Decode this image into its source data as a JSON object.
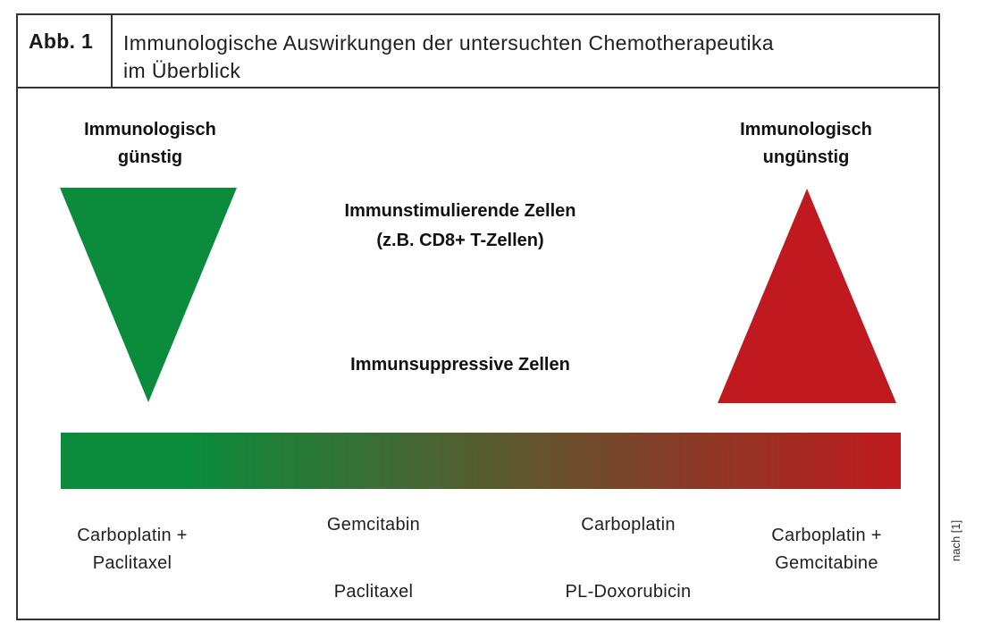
{
  "figure": {
    "label": "Abb. 1",
    "title_line1": "Immunologische Auswirkungen der untersuchten Chemotherapeutika",
    "title_line2": "im Überblick"
  },
  "left_side": {
    "heading_line1": "Immunologisch",
    "heading_line2": "günstig",
    "triangle_direction": "down",
    "triangle_color": "#0a8c3c"
  },
  "right_side": {
    "heading_line1": "Immunologisch",
    "heading_line2": "ungünstig",
    "triangle_direction": "up",
    "triangle_color": "#c0191f"
  },
  "center_labels": {
    "stimulating_line1": "Immunstimulierende Zellen",
    "stimulating_line2": "(z.B. CD8+ T-Zellen)",
    "suppressive": "Immunsuppressive Zellen"
  },
  "gradient": {
    "start_color": "#0a8c3c",
    "end_color": "#c0191f"
  },
  "drugs": {
    "group1_line1": "Carboplatin +",
    "group1_line2": "Paclitaxel",
    "group2_top": "Gemcitabin",
    "group2_bottom": "Paclitaxel",
    "group3_top": "Carboplatin",
    "group3_bottom": "PL-Doxorubicin",
    "group4_line1": "Carboplatin +",
    "group4_line2": "Gemcitabine"
  },
  "source": "nach [1]"
}
